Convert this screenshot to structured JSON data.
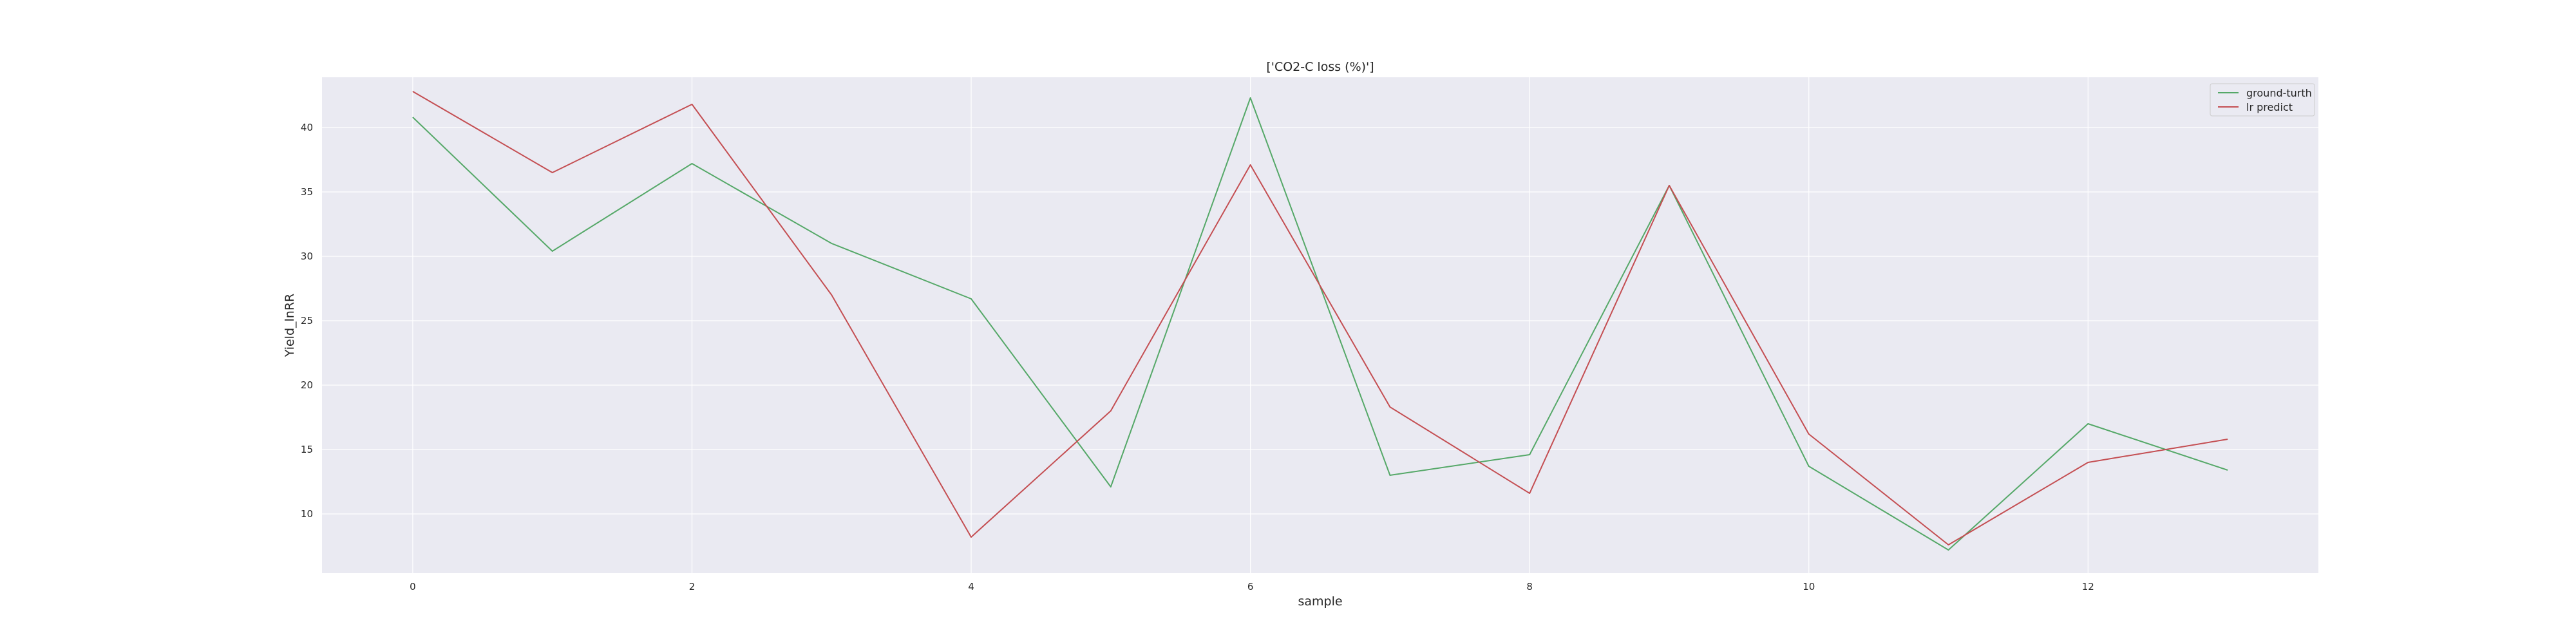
{
  "chart_data": {
    "type": "line",
    "title": "['CO2-C loss (%)']",
    "xlabel": "sample",
    "ylabel": "Yield_lnRR",
    "x": [
      0,
      1,
      2,
      3,
      4,
      5,
      6,
      7,
      8,
      9,
      10,
      11,
      12,
      13
    ],
    "xlim": [
      -0.65,
      13.65
    ],
    "ylim": [
      5.4,
      43.9
    ],
    "xticks": [
      0,
      2,
      4,
      6,
      8,
      10,
      12
    ],
    "yticks": [
      10,
      15,
      20,
      25,
      30,
      35,
      40
    ],
    "grid": true,
    "legend_position": "top-right",
    "series": [
      {
        "name": "ground-turth",
        "color": "#55a868",
        "values": [
          40.8,
          30.4,
          37.2,
          31.0,
          26.7,
          12.1,
          42.3,
          13.0,
          14.6,
          35.5,
          13.7,
          7.2,
          17.0,
          13.4
        ]
      },
      {
        "name": "lr predict",
        "color": "#c44e52",
        "values": [
          42.8,
          36.5,
          41.8,
          27.0,
          8.2,
          18.0,
          37.1,
          18.3,
          11.6,
          35.5,
          16.2,
          7.6,
          14.0,
          15.8
        ]
      }
    ]
  },
  "style": {
    "plot_background": "#eaeaf2",
    "grid_color": "#ffffff"
  }
}
